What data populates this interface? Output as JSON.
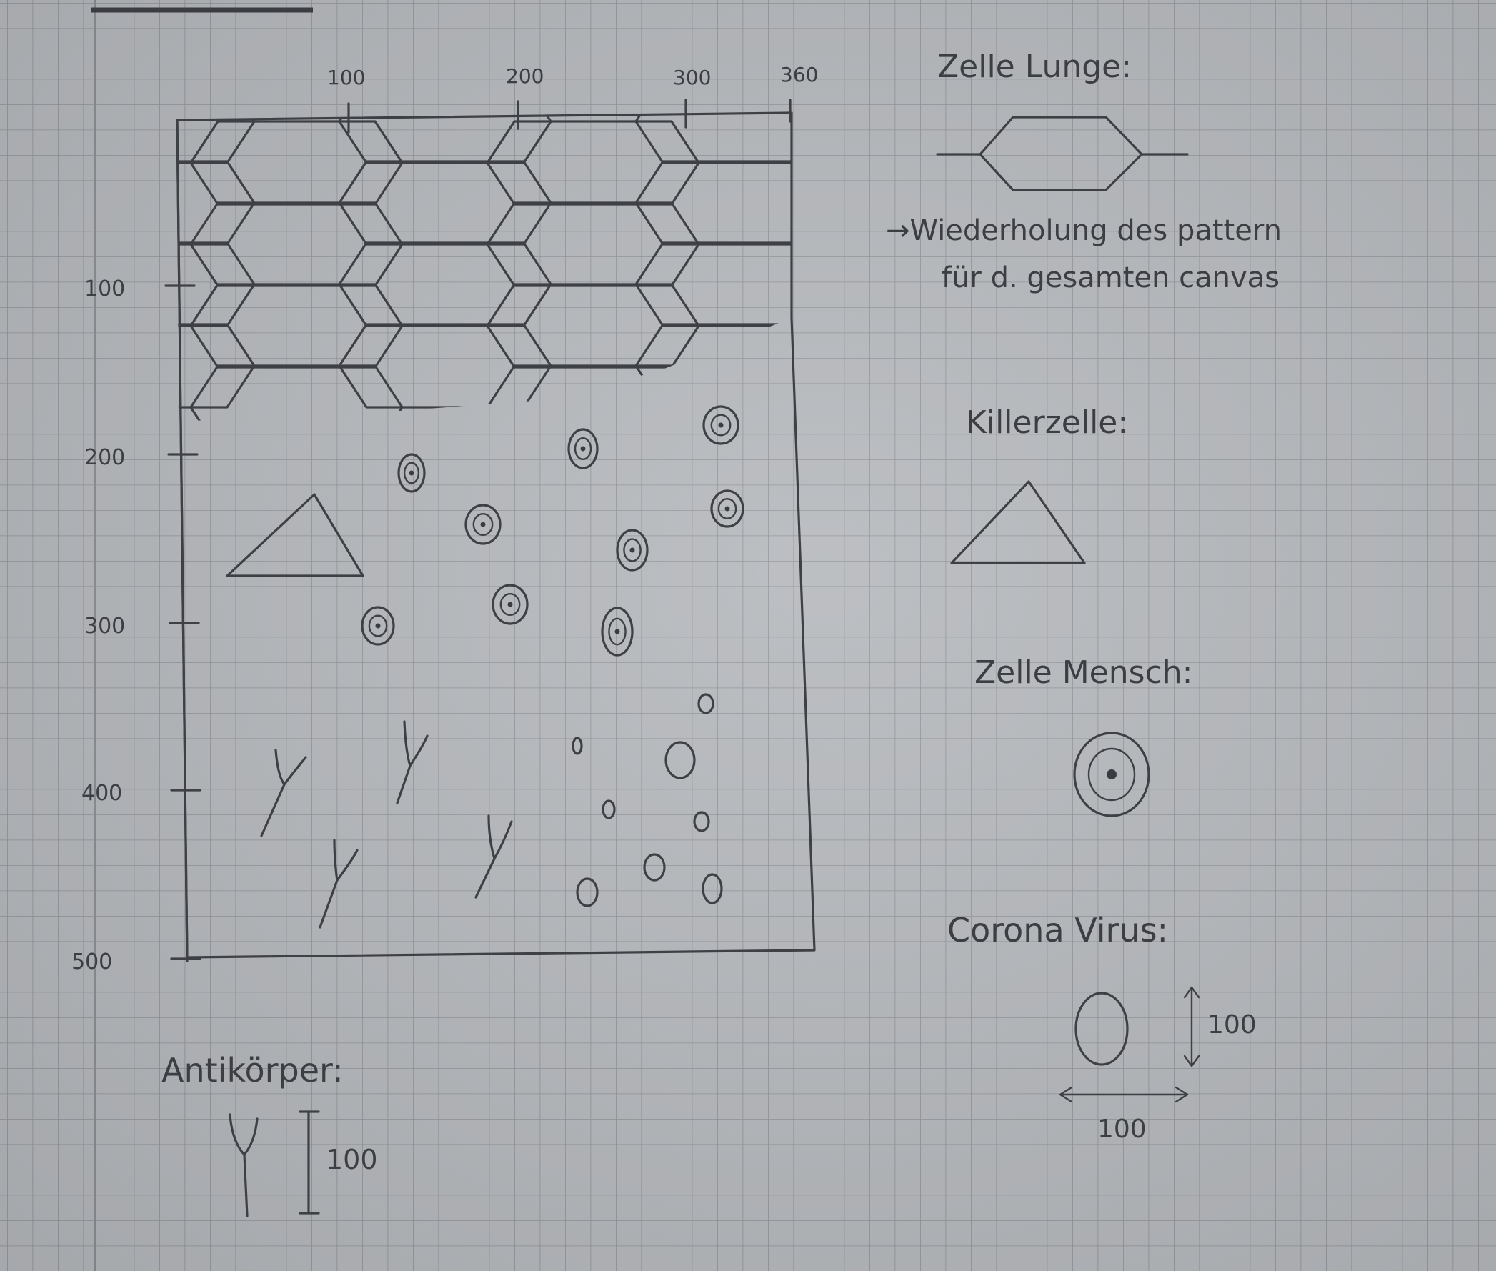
{
  "canvas_axis": {
    "x_ticks": [
      "100",
      "200",
      "300",
      "360"
    ],
    "y_ticks": [
      "100",
      "200",
      "300",
      "400",
      "500"
    ]
  },
  "legend": {
    "lung_cell": {
      "title": "Zelle Lunge:",
      "note_line1": "→Wiederholung des pattern",
      "note_line2": "für d. gesamten canvas"
    },
    "killer_cell": {
      "title": "Killerzelle:"
    },
    "human_cell": {
      "title": "Zelle Mensch:"
    },
    "corona_virus": {
      "title": "Corona Virus:",
      "height_label": "100",
      "width_label": "100"
    },
    "antibody": {
      "title": "Antikörper:",
      "height_label": "100"
    }
  },
  "colors": {
    "paper": "#b5b8bc",
    "grid": "#8e9196",
    "ink": "#3e4046"
  }
}
